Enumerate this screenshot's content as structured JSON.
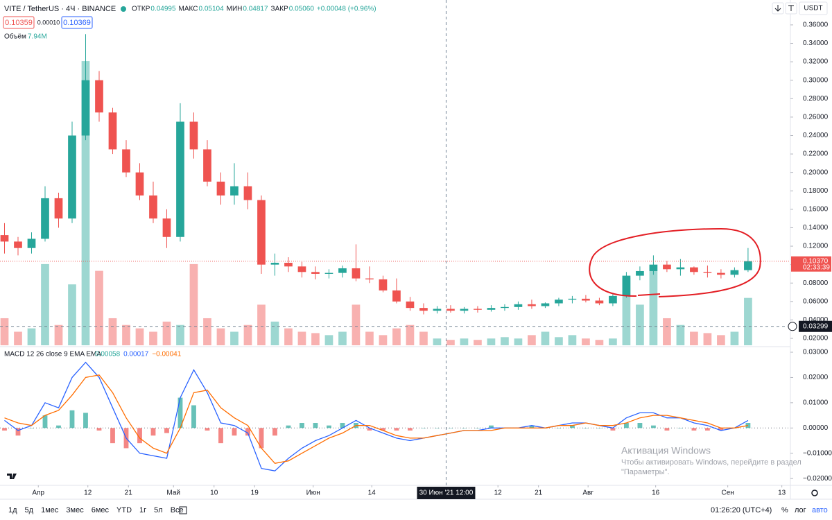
{
  "header": {
    "ohlc_legend": [
      {
        "label": "ОТКР",
        "value": "0.04995"
      },
      {
        "label": "МАКС",
        "value": "0.05104"
      },
      {
        "label": "МИН",
        "value": "0.04817"
      },
      {
        "label": "ЗАКР",
        "value": "0.05060"
      }
    ],
    "change": "+0.00048 (+0.96%)",
    "quote": [
      "0.10359",
      "0.00010",
      "0.10369"
    ],
    "currency": "USDT"
  },
  "chart_data": [
    {
      "type": "candlestick",
      "title": "VITE / TetherUS · 4Ч · BINANCE",
      "x": [
        1,
        4,
        7,
        10,
        13,
        16,
        19,
        22,
        25,
        28,
        31,
        34,
        37,
        40,
        43,
        46,
        49,
        52,
        55,
        58,
        61,
        64,
        67,
        70,
        73,
        76,
        79,
        82,
        85,
        88,
        91,
        94,
        97,
        100,
        103,
        106,
        109,
        112,
        115,
        118,
        121,
        124,
        127,
        130,
        133,
        136,
        139,
        142,
        145,
        148,
        151,
        154,
        157,
        160,
        163,
        166
      ],
      "open": [
        0.132,
        0.125,
        0.118,
        0.128,
        0.172,
        0.15,
        0.24,
        0.3,
        0.265,
        0.225,
        0.2,
        0.175,
        0.15,
        0.13,
        0.255,
        0.225,
        0.19,
        0.175,
        0.185,
        0.17,
        0.1,
        0.102,
        0.098,
        0.092,
        0.09,
        0.091,
        0.096,
        0.085,
        0.084,
        0.072,
        0.06,
        0.053,
        0.05,
        0.052,
        0.05,
        0.052,
        0.051,
        0.053,
        0.054,
        0.057,
        0.055,
        0.058,
        0.062,
        0.063,
        0.061,
        0.058,
        0.066,
        0.088,
        0.093,
        0.1,
        0.095,
        0.097,
        0.092,
        0.091,
        0.089,
        0.094
      ],
      "high": [
        0.145,
        0.13,
        0.135,
        0.185,
        0.178,
        0.255,
        0.35,
        0.31,
        0.27,
        0.235,
        0.21,
        0.19,
        0.16,
        0.275,
        0.265,
        0.235,
        0.2,
        0.21,
        0.2,
        0.175,
        0.112,
        0.108,
        0.103,
        0.098,
        0.095,
        0.099,
        0.122,
        0.098,
        0.088,
        0.085,
        0.065,
        0.058,
        0.055,
        0.056,
        0.054,
        0.055,
        0.056,
        0.057,
        0.06,
        0.062,
        0.059,
        0.064,
        0.066,
        0.067,
        0.064,
        0.068,
        0.092,
        0.098,
        0.11,
        0.104,
        0.106,
        0.098,
        0.099,
        0.095,
        0.097,
        0.118
      ],
      "low": [
        0.112,
        0.11,
        0.112,
        0.125,
        0.14,
        0.145,
        0.235,
        0.255,
        0.22,
        0.195,
        0.17,
        0.145,
        0.118,
        0.125,
        0.215,
        0.185,
        0.165,
        0.165,
        0.16,
        0.09,
        0.088,
        0.092,
        0.086,
        0.084,
        0.085,
        0.086,
        0.082,
        0.08,
        0.07,
        0.058,
        0.05,
        0.046,
        0.047,
        0.048,
        0.047,
        0.048,
        0.049,
        0.05,
        0.051,
        0.052,
        0.053,
        0.055,
        0.058,
        0.059,
        0.056,
        0.055,
        0.064,
        0.083,
        0.089,
        0.092,
        0.088,
        0.089,
        0.086,
        0.085,
        0.086,
        0.092
      ],
      "close": [
        0.125,
        0.118,
        0.128,
        0.172,
        0.15,
        0.24,
        0.3,
        0.265,
        0.225,
        0.2,
        0.175,
        0.15,
        0.13,
        0.255,
        0.225,
        0.19,
        0.175,
        0.185,
        0.17,
        0.1,
        0.102,
        0.098,
        0.092,
        0.09,
        0.091,
        0.096,
        0.085,
        0.084,
        0.072,
        0.06,
        0.053,
        0.05,
        0.052,
        0.05,
        0.052,
        0.051,
        0.053,
        0.054,
        0.057,
        0.055,
        0.058,
        0.062,
        0.063,
        0.061,
        0.058,
        0.066,
        0.088,
        0.093,
        0.1,
        0.095,
        0.097,
        0.092,
        0.091,
        0.089,
        0.094,
        0.1037
      ],
      "volume": {
        "name": "Объём",
        "legend_value": "7.94M",
        "ylim": [
          0,
          500
        ],
        "values": [
          40,
          20,
          25,
          120,
          30,
          90,
          420,
          110,
          40,
          30,
          25,
          20,
          35,
          30,
          120,
          40,
          25,
          20,
          30,
          60,
          35,
          25,
          20,
          18,
          15,
          20,
          60,
          20,
          15,
          25,
          30,
          20,
          10,
          8,
          10,
          8,
          10,
          12,
          10,
          15,
          20,
          12,
          15,
          10,
          8,
          10,
          100,
          60,
          110,
          40,
          30,
          20,
          18,
          15,
          20,
          70
        ]
      },
      "colors": {
        "up": "#26a69a",
        "down": "#ef5350"
      },
      "xlim": [
        0,
        175.4
      ],
      "ylim": [
        0.011,
        0.387
      ],
      "yticks": [
        {
          "value": 0.02,
          "label": "0.02000"
        },
        {
          "value": 0.04,
          "label": "0.04000"
        },
        {
          "value": 0.06,
          "label": "0.06000"
        },
        {
          "value": 0.08,
          "label": "0.08000"
        },
        {
          "value": 0.1,
          "label": "0.10000"
        },
        {
          "value": 0.12,
          "label": "0.12000"
        },
        {
          "value": 0.14,
          "label": "0.14000"
        },
        {
          "value": 0.16,
          "label": "0.16000"
        },
        {
          "value": 0.18,
          "label": "0.18000"
        },
        {
          "value": 0.2,
          "label": "0.20000"
        },
        {
          "value": 0.22,
          "label": "0.22000"
        },
        {
          "value": 0.24,
          "label": "0.24000"
        },
        {
          "value": 0.26,
          "label": "0.26000"
        },
        {
          "value": 0.28,
          "label": "0.28000"
        },
        {
          "value": 0.3,
          "label": "0.30000"
        },
        {
          "value": 0.32,
          "label": "0.32000"
        },
        {
          "value": 0.34,
          "label": "0.34000"
        },
        {
          "value": 0.36,
          "label": "0.36000"
        }
      ],
      "last_price": {
        "value": 0.1037,
        "label": "0.10370",
        "countdown": "02:33:39"
      },
      "crosshair": {
        "x": 99,
        "x_label": "30 Июн '21  12:00",
        "y": 0.03299
      }
    },
    {
      "type": "macd",
      "title": "MACD 12 26 close 9 EMA EMA",
      "x": [
        1,
        4,
        7,
        10,
        13,
        16,
        19,
        22,
        25,
        28,
        31,
        34,
        37,
        40,
        43,
        46,
        49,
        52,
        55,
        58,
        61,
        64,
        67,
        70,
        73,
        76,
        79,
        82,
        85,
        88,
        91,
        94,
        97,
        100,
        103,
        106,
        109,
        112,
        115,
        118,
        121,
        124,
        127,
        130,
        133,
        136,
        139,
        142,
        145,
        148,
        151,
        154,
        157,
        160,
        163,
        166
      ],
      "histogram": {
        "legend_value": "0.00058",
        "colors": {
          "up": "#26a69a",
          "down": "#ef5350"
        },
        "values": [
          -0.001,
          -0.003,
          0,
          0.005,
          0.001,
          0.007,
          0.006,
          -0.001,
          -0.006,
          -0.008,
          -0.006,
          -0.003,
          -0.002,
          0.012,
          0.009,
          -0.001,
          -0.006,
          -0.003,
          -0.003,
          -0.008,
          -0.003,
          0.001,
          0.002,
          0.002,
          0.001,
          0.002,
          0.002,
          -0.001,
          -0.001,
          -0.001,
          -0.001,
          0,
          0,
          0,
          0,
          0,
          0.001,
          0,
          0,
          0.001,
          0,
          0,
          0.001,
          0,
          0,
          -0.001,
          0.002,
          0.002,
          0.001,
          -0.001,
          0,
          -0.001,
          -0.001,
          -0.001,
          0,
          0.002
        ]
      },
      "series": [
        {
          "legend_value": "0.00017",
          "color": "#2962ff",
          "values": [
            0.003,
            -0.001,
            0.001,
            0.01,
            0.008,
            0.02,
            0.026,
            0.02,
            0.008,
            -0.004,
            -0.01,
            -0.011,
            -0.012,
            0.012,
            0.023,
            0.014,
            0.002,
            0.001,
            -0.002,
            -0.016,
            -0.017,
            -0.012,
            -0.008,
            -0.005,
            -0.003,
            0,
            0.003,
            0,
            -0.002,
            -0.004,
            -0.005,
            -0.004,
            -0.003,
            -0.002,
            -0.001,
            -0.001,
            0,
            0,
            0,
            0.001,
            0,
            0.001,
            0.002,
            0.002,
            0.001,
            0,
            0.004,
            0.006,
            0.006,
            0.004,
            0.004,
            0.002,
            0.001,
            -0.001,
            0,
            0.003
          ]
        },
        {
          "legend_value": "−0.00041",
          "color": "#ff6d00",
          "values": [
            0.004,
            0.002,
            0.001,
            0.005,
            0.007,
            0.013,
            0.02,
            0.021,
            0.014,
            0.004,
            -0.004,
            -0.008,
            -0.01,
            0,
            0.014,
            0.015,
            0.008,
            0.004,
            0.001,
            -0.008,
            -0.014,
            -0.013,
            -0.01,
            -0.007,
            -0.004,
            -0.002,
            0.001,
            0.001,
            -0.001,
            -0.003,
            -0.004,
            -0.004,
            -0.003,
            -0.002,
            -0.001,
            -0.001,
            -0.001,
            0,
            0,
            0,
            0,
            0.001,
            0.001,
            0.002,
            0.001,
            0.001,
            0.002,
            0.004,
            0.005,
            0.005,
            0.004,
            0.003,
            0.002,
            0,
            0,
            0.001
          ]
        }
      ],
      "xlim": [
        0,
        175.4
      ],
      "ylim": [
        -0.0227,
        0.0322
      ],
      "yticks": [
        {
          "value": 0.03,
          "label": "0.03000"
        },
        {
          "value": 0.02,
          "label": "0.02000"
        },
        {
          "value": 0.01,
          "label": "0.01000"
        },
        {
          "value": 0,
          "label": "0.00000"
        },
        {
          "value": -0.01,
          "label": "−0.01000"
        },
        {
          "value": -0.02,
          "label": "−0.02000"
        }
      ],
      "xticks": [
        {
          "value": 8.5,
          "label": "Апр"
        },
        {
          "value": 19.5,
          "label": "12"
        },
        {
          "value": 28.5,
          "label": "21"
        },
        {
          "value": 38.5,
          "label": "Май"
        },
        {
          "value": 47.5,
          "label": "10"
        },
        {
          "value": 56.5,
          "label": "19"
        },
        {
          "value": 69.5,
          "label": "Июн"
        },
        {
          "value": 82.5,
          "label": "14"
        },
        {
          "value": 110.5,
          "label": "12"
        },
        {
          "value": 119.5,
          "label": "21"
        },
        {
          "value": 130.5,
          "label": "Авг"
        },
        {
          "value": 145.5,
          "label": "16"
        },
        {
          "value": 161.5,
          "label": "Сен"
        },
        {
          "value": 173.5,
          "label": "13"
        }
      ]
    }
  ],
  "toolbar": {
    "ranges": [
      "1д",
      "5д",
      "1мес",
      "3мес",
      "6мес",
      "YTD",
      "1г",
      "5л",
      "Все"
    ],
    "time": "01:26:20 (UTC+4)",
    "percent": "%",
    "log": "лог",
    "auto": "авто"
  },
  "watermark": [
    "Активация Windows",
    "Чтобы активировать Windows, перейдите в раздел",
    "\"Параметры\"."
  ]
}
